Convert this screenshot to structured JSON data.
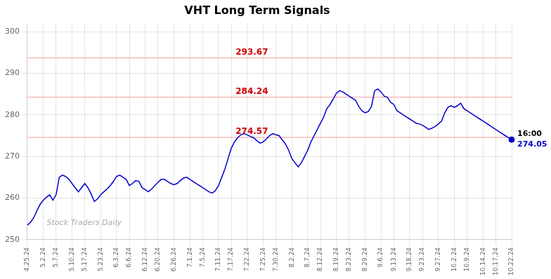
{
  "chart_data": {
    "type": "line",
    "title": "VHT Long Term Signals",
    "categories": [
      "4.25.24",
      null,
      null,
      null,
      null,
      "5.2.24",
      null,
      null,
      null,
      "5.7.24",
      null,
      null,
      null,
      null,
      "5.10.24",
      null,
      null,
      null,
      "5.17.24",
      null,
      null,
      null,
      null,
      "5.23.24",
      null,
      null,
      null,
      null,
      "6.3.24",
      null,
      null,
      null,
      "6.6.24",
      null,
      null,
      null,
      null,
      "6.12.24",
      null,
      null,
      null,
      "6.20.24",
      null,
      null,
      null,
      null,
      "6.26.24",
      null,
      null,
      null,
      null,
      "7.1.24",
      null,
      null,
      null,
      "7.5.24",
      null,
      null,
      null,
      null,
      "7.11.24",
      null,
      null,
      null,
      "7.17.24",
      null,
      null,
      null,
      null,
      "7.22.24",
      null,
      null,
      null,
      null,
      "7.25.24",
      null,
      null,
      null,
      "7.30.24",
      null,
      null,
      null,
      null,
      "8.2.24",
      null,
      null,
      null,
      null,
      "8.7.24",
      null,
      null,
      null,
      "8.12.24",
      null,
      null,
      null,
      null,
      "8.19.24",
      null,
      null,
      null,
      "8.23.24",
      null,
      null,
      null,
      null,
      "8.29.24",
      null,
      null,
      null,
      null,
      "9.6.24",
      null,
      null,
      null,
      "9.13.24",
      null,
      null,
      null,
      null,
      "9.18.24",
      null,
      null,
      null,
      "9.23.24",
      null,
      null,
      null,
      null,
      "9.27.24",
      null,
      null,
      null,
      null,
      "10.2.24",
      null,
      null,
      null,
      "10.9.24",
      null,
      null,
      null,
      null,
      "10.14.24",
      null,
      null,
      null,
      "10.17.24",
      null,
      null,
      null,
      null,
      "10.22.24"
    ],
    "values": [
      253.5,
      254.2,
      255.3,
      257.0,
      258.5,
      259.5,
      260.2,
      260.8,
      259.5,
      260.8,
      265.0,
      265.5,
      265.2,
      264.5,
      263.5,
      262.5,
      261.5,
      262.5,
      263.5,
      262.5,
      261.0,
      259.2,
      259.8,
      260.8,
      261.5,
      262.2,
      263.0,
      264.0,
      265.2,
      265.5,
      265.0,
      264.5,
      263.0,
      263.5,
      264.2,
      264.0,
      262.5,
      262.0,
      261.5,
      262.2,
      263.0,
      263.8,
      264.5,
      264.5,
      264.0,
      263.5,
      263.2,
      263.5,
      264.2,
      264.8,
      265.0,
      264.5,
      264.0,
      263.5,
      263.0,
      262.5,
      262.0,
      261.5,
      261.2,
      261.8,
      263.0,
      265.0,
      267.0,
      269.5,
      272.0,
      273.5,
      274.5,
      275.2,
      275.5,
      275.2,
      274.8,
      274.5,
      273.8,
      273.2,
      273.5,
      274.2,
      275.0,
      275.5,
      275.2,
      275.0,
      274.0,
      273.0,
      271.5,
      269.5,
      268.5,
      267.5,
      268.5,
      270.0,
      271.5,
      273.5,
      275.0,
      276.5,
      278.0,
      279.5,
      281.5,
      282.5,
      283.8,
      285.2,
      285.8,
      285.5,
      285.0,
      284.5,
      284.0,
      283.5,
      282.0,
      281.0,
      280.5,
      280.8,
      282.0,
      285.8,
      286.2,
      285.5,
      284.5,
      284.2,
      283.0,
      282.5,
      281.0,
      280.5,
      280.0,
      279.5,
      279.0,
      278.5,
      278.0,
      277.8,
      277.5,
      277.0,
      276.5,
      276.8,
      277.2,
      277.8,
      278.5,
      280.5,
      281.8,
      282.2,
      281.8,
      282.2,
      282.8,
      281.5,
      281.0,
      280.5,
      280.0,
      279.5,
      279.0,
      278.5,
      278.0,
      277.5,
      277.0,
      276.5,
      276.0,
      275.5,
      275.0,
      274.5,
      274.05
    ],
    "color": "#0000cc",
    "ylim": [
      250,
      302
    ],
    "yticks": [
      250,
      260,
      270,
      280,
      290,
      300
    ],
    "grid": true,
    "hlines": [
      {
        "value": 293.67,
        "label": "293.67",
        "color": "#f0a0a0",
        "label_color": "#cc0000"
      },
      {
        "value": 284.24,
        "label": "284.24",
        "color": "#f0a0a0",
        "label_color": "#cc0000"
      },
      {
        "value": 274.57,
        "label": "274.57",
        "color": "#f0a0a0",
        "label_color": "#cc0000"
      }
    ],
    "end_marker": {
      "label": "16:00",
      "value": 274.05,
      "value_label": "274.05",
      "color": "#0000cc"
    },
    "watermark": "Stock Traders Daily"
  }
}
